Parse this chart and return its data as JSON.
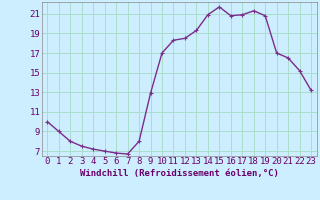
{
  "x": [
    0,
    1,
    2,
    3,
    4,
    5,
    6,
    7,
    8,
    9,
    10,
    11,
    12,
    13,
    14,
    15,
    16,
    17,
    18,
    19,
    20,
    21,
    22,
    23
  ],
  "y": [
    10.0,
    9.0,
    8.0,
    7.5,
    7.2,
    7.0,
    6.8,
    6.7,
    8.0,
    12.9,
    17.0,
    18.3,
    18.5,
    19.3,
    20.9,
    21.7,
    20.8,
    20.9,
    21.3,
    20.8,
    17.0,
    16.5,
    15.2,
    13.2
  ],
  "line_color": "#7b2d8b",
  "marker": "+",
  "bg_color": "#cceeff",
  "grid_color": "#aaddcc",
  "xlabel": "Windchill (Refroidissement éolien,°C)",
  "ylim": [
    6.5,
    22.2
  ],
  "yticks": [
    7,
    9,
    11,
    13,
    15,
    17,
    19,
    21
  ],
  "xlim": [
    -0.5,
    23.5
  ],
  "xticks": [
    0,
    1,
    2,
    3,
    4,
    5,
    6,
    7,
    8,
    9,
    10,
    11,
    12,
    13,
    14,
    15,
    16,
    17,
    18,
    19,
    20,
    21,
    22,
    23
  ],
  "xlabel_fontsize": 6.5,
  "tick_fontsize": 6.5,
  "line_width": 1.0,
  "marker_size": 3.5,
  "text_color": "#6a006a"
}
